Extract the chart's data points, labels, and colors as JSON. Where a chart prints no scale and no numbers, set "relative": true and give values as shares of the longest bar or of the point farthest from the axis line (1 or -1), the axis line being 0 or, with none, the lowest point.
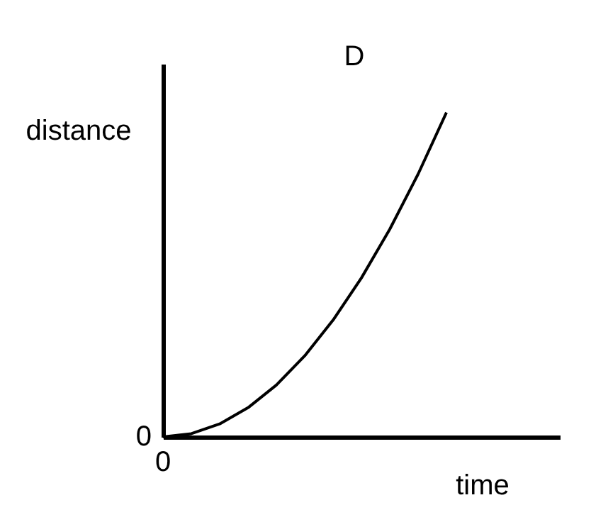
{
  "chart_data": {
    "type": "line",
    "title": "D",
    "xlabel": "time",
    "ylabel": "distance",
    "relative": true,
    "grid": false,
    "categories": [
      null,
      null,
      null,
      null,
      null,
      null,
      null,
      null,
      null,
      null,
      null,
      null,
      null,
      null,
      null
    ],
    "series": [
      {
        "color": "#000000",
        "values": [
          0,
          0.01,
          0.04,
          0.09,
          0.16,
          0.25,
          0.36,
          0.49,
          0.64,
          0.81,
          1,
          null,
          null,
          null,
          null
        ]
      }
    ],
    "annotations": [
      "0",
      "0"
    ]
  }
}
